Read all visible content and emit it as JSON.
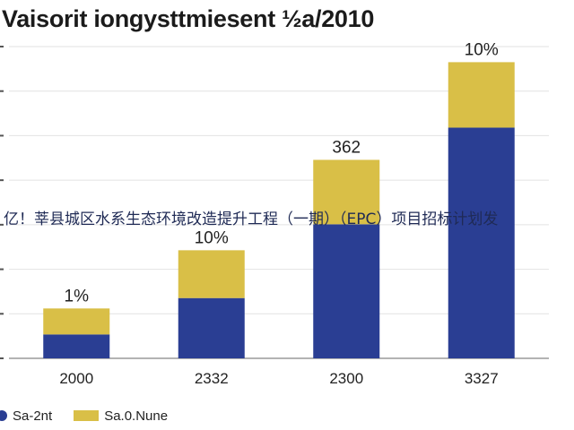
{
  "chart_data": {
    "type": "bar",
    "stacked": true,
    "title": "Vaisorit iongysttmiesent ½a/2010",
    "categories": [
      "2000",
      "2332",
      "2300",
      "3327"
    ],
    "series": [
      {
        "name": "Sa-2nt",
        "color": "#2a3e93",
        "values": [
          23,
          58,
          129,
          222
        ]
      },
      {
        "name": "Sa.0.Nune",
        "color": "#d9bf47",
        "values": [
          25,
          46,
          62,
          63
        ]
      }
    ],
    "bar_labels": [
      "1%",
      "10%",
      "362",
      "10%"
    ],
    "ylim": [
      0,
      300
    ],
    "grid": true,
    "legend_position": "bottom-left"
  },
  "overlay_text": "亿！莘县城区水系生态环境改造提升工程（一期）（EPC）项目招标计划发"
}
